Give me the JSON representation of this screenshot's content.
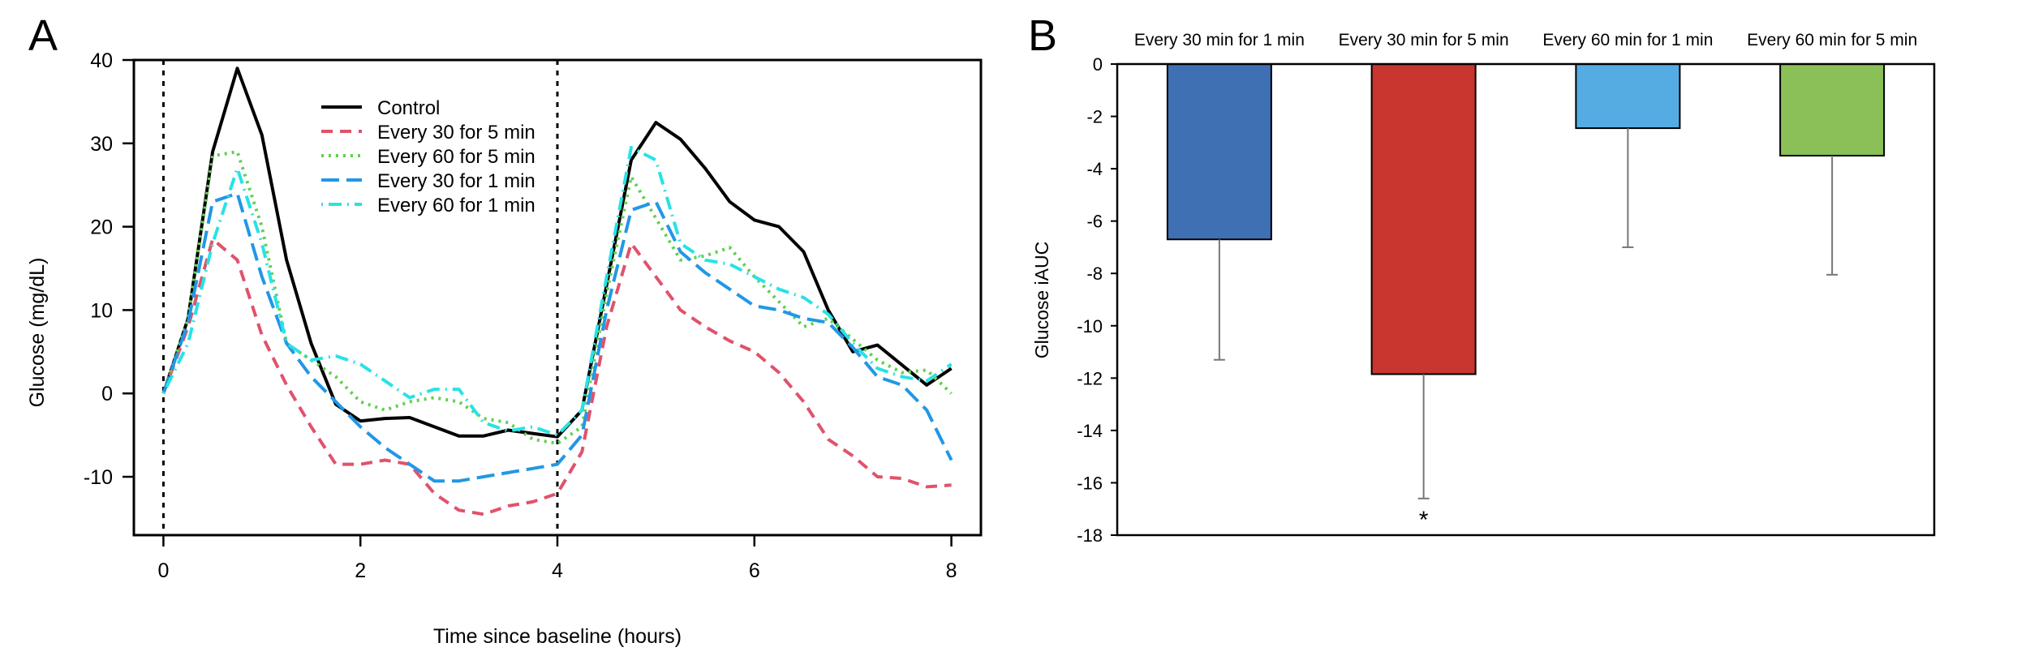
{
  "chart_data": [
    {
      "panel_label": "A",
      "type": "line",
      "xlabel": "Time since baseline (hours)",
      "ylabel": "Glucose (mg/dL)",
      "xlim": [
        -0.3,
        8.3
      ],
      "ylim": [
        -17,
        40
      ],
      "x_ticks": [
        0,
        2,
        4,
        6,
        8
      ],
      "x_tick_labels": [
        "0",
        "2",
        "4",
        "6",
        "8"
      ],
      "y_ticks": [
        -10,
        0,
        10,
        20,
        30,
        40
      ],
      "y_tick_labels": [
        "-10",
        "0",
        "10",
        "20",
        "30",
        "40"
      ],
      "vertical_reference_lines_x": [
        0,
        4
      ],
      "legend_position": "top-center",
      "x": [
        0,
        0.25,
        0.5,
        0.75,
        1,
        1.25,
        1.5,
        1.75,
        2,
        2.25,
        2.5,
        2.75,
        3,
        3.25,
        3.5,
        3.75,
        4,
        4.25,
        4.5,
        4.75,
        5,
        5.25,
        5.5,
        5.75,
        6,
        6.25,
        6.5,
        6.75,
        7,
        7.25,
        7.5,
        7.75,
        8
      ],
      "series": [
        {
          "name": "Control",
          "color": "#000000",
          "dash": "solid",
          "values": [
            0,
            9,
            29,
            39,
            31,
            16,
            6,
            -1.3,
            -3.3,
            -3,
            -2.9,
            -4,
            -5.1,
            -5.1,
            -4.4,
            -4.8,
            -5.2,
            -2,
            13,
            28,
            32.5,
            30.5,
            27,
            23,
            20.8,
            20,
            17,
            10,
            5,
            5.8,
            3.4,
            1,
            3
          ]
        },
        {
          "name": "Every 30 for 5 min",
          "color": "#DF536B",
          "dash": "dashed",
          "values": [
            0,
            8,
            18.5,
            16,
            7,
            1,
            -4,
            -8.5,
            -8.5,
            -8,
            -8.5,
            -12,
            -14,
            -14.5,
            -13.5,
            -13,
            -12,
            -7,
            8,
            18,
            14,
            10,
            8,
            6.3,
            5,
            2.5,
            -1,
            -5.5,
            -7.5,
            -10,
            -10.2,
            -11.2,
            -11
          ]
        },
        {
          "name": "Every 60 for 5 min",
          "color": "#61D04F",
          "dash": "dotted",
          "values": [
            0,
            9,
            28.5,
            29,
            20,
            6,
            4,
            2,
            -1,
            -2,
            -1,
            -0.5,
            -1,
            -3,
            -3.5,
            -5.5,
            -6,
            -4,
            12,
            26,
            21,
            16,
            16.5,
            17.5,
            14,
            11,
            8,
            9,
            6.5,
            4,
            2.5,
            2.8,
            0
          ]
        },
        {
          "name": "Every 30 for 1 min",
          "color": "#2297E6",
          "dash": "longdash",
          "values": [
            0,
            8.5,
            23,
            24,
            14,
            6,
            2,
            -1,
            -4,
            -6.5,
            -8.5,
            -10.5,
            -10.5,
            -10,
            -9.5,
            -9,
            -8.5,
            -5,
            10,
            22,
            23,
            17,
            14.5,
            12.5,
            10.5,
            10,
            9,
            8.5,
            5.5,
            2,
            1,
            -2,
            -8
          ]
        },
        {
          "name": "Every 60 for 1 min",
          "color": "#28E2E5",
          "dash": "dotdash",
          "values": [
            0,
            6,
            18,
            27,
            18,
            6,
            4,
            4.5,
            3.5,
            1.5,
            -0.5,
            0.5,
            0.5,
            -3.5,
            -4.5,
            -4,
            -5,
            -2,
            14,
            29.5,
            28,
            18,
            16,
            15.5,
            14,
            12.5,
            11.5,
            9.5,
            6,
            3,
            2,
            1.5,
            3.5
          ]
        }
      ]
    },
    {
      "panel_label": "B",
      "type": "bar",
      "xlabel": "",
      "ylabel": "Glucose iAUC",
      "ylim": [
        -18,
        0
      ],
      "y_ticks": [
        0,
        -2,
        -4,
        -6,
        -8,
        -10,
        -12,
        -14,
        -16,
        -18
      ],
      "y_tick_labels": [
        "0",
        "-2",
        "-4",
        "-6",
        "-8",
        "-10",
        "-12",
        "-14",
        "-16",
        "-18"
      ],
      "category_axis_position": "top",
      "categories": [
        "Every 30 min for 1 min",
        "Every 30 min for 5 min",
        "Every 60 min for 1 min",
        "Every 60 min for 5 min"
      ],
      "values": [
        -6.7,
        -11.85,
        -2.45,
        -3.5
      ],
      "error_bar_ends": [
        -11.3,
        -16.6,
        -7.0,
        -8.05
      ],
      "colors": [
        "#4070B4",
        "#C9352F",
        "#55ACE3",
        "#8BBF57"
      ],
      "annotations": [
        {
          "category": "Every 30 min for 5 min",
          "text": "*"
        }
      ]
    }
  ]
}
